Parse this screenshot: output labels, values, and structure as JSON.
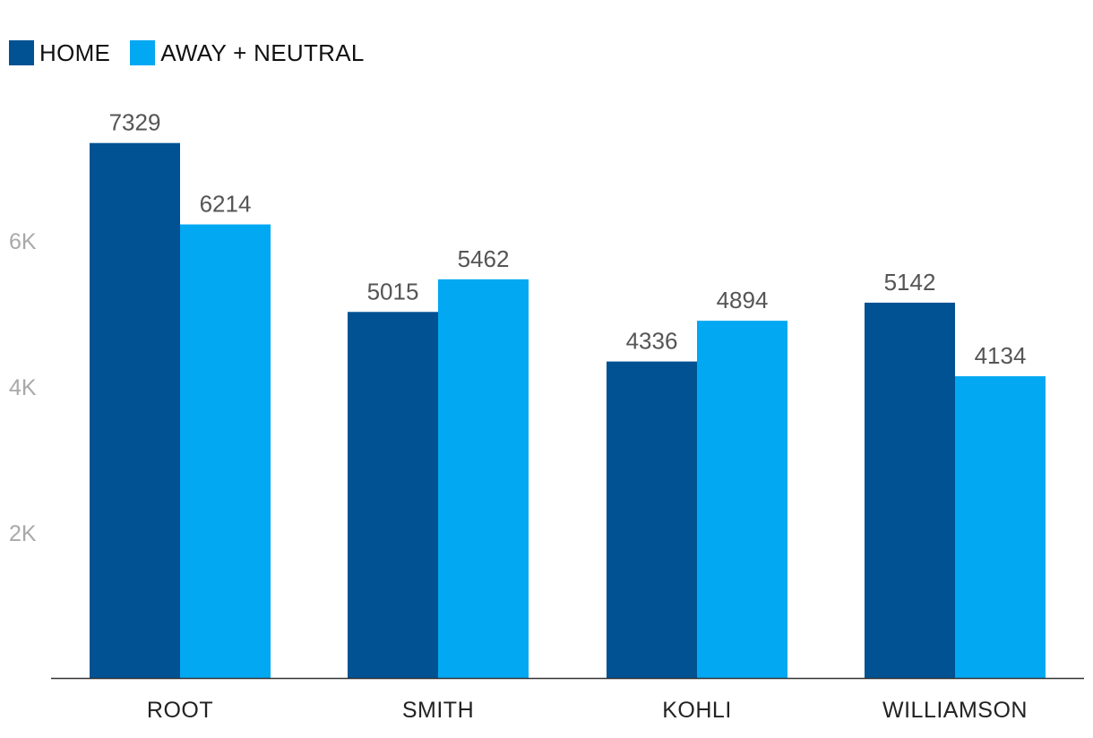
{
  "legend": {
    "items": [
      {
        "label": "HOME",
        "color": "#005293"
      },
      {
        "label": "AWAY + NEUTRAL",
        "color": "#03A8F2"
      }
    ]
  },
  "chart_data": {
    "type": "bar",
    "categories": [
      "ROOT",
      "SMITH",
      "KOHLI",
      "WILLIAMSON"
    ],
    "series": [
      {
        "name": "HOME",
        "color": "#005293",
        "values": [
          7329,
          5015,
          4336,
          5142
        ]
      },
      {
        "name": "AWAY + NEUTRAL",
        "color": "#03A8F2",
        "values": [
          6214,
          5462,
          4894,
          4134
        ]
      }
    ],
    "yticks": [
      {
        "value": 2000,
        "label": "2K"
      },
      {
        "value": 4000,
        "label": "4K"
      },
      {
        "value": 6000,
        "label": "6K"
      }
    ],
    "ylim": [
      0,
      8000
    ],
    "grid": false,
    "legend_position": "top-left",
    "data_labels": true
  }
}
